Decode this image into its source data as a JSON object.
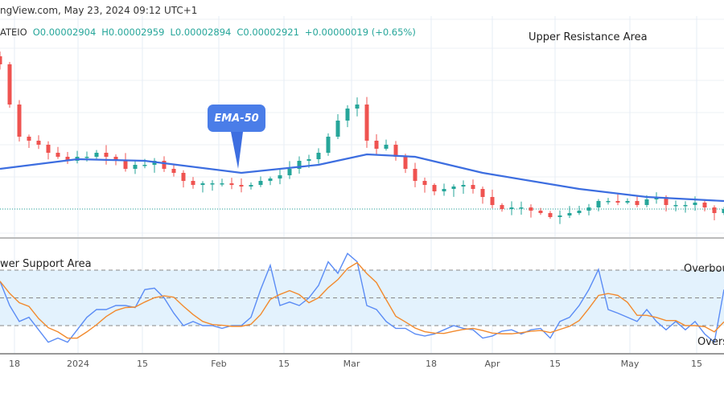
{
  "header": {
    "source": "ngView.com, May 23, 2024 09:12 UTC+1",
    "ticker": "ATEIO",
    "open": "O0.00002904",
    "high": "H0.00002959",
    "low": "L0.00002894",
    "close": "C0.00002921",
    "change": "+0.00000019 (+0.65%)"
  },
  "annotations": {
    "upper": "Upper Resistance Area",
    "lower": "wer Support Area",
    "ema": "EMA-50",
    "overbought": "Overbough",
    "oversold": "Overs"
  },
  "colors": {
    "up": "#26a69a",
    "down": "#ef5350",
    "ema": "#3d6ee0",
    "rsi": "#5b8cf5",
    "rsi_ma": "#f28a2e",
    "band": "#e3f2fd"
  },
  "chart_data": [
    {
      "type": "candlestick",
      "title": "",
      "last_close": 2.921e-05,
      "ylim": [
        2.801e-05,
        3.881e-05
      ],
      "x_ticks": [
        "18",
        "2024",
        "15",
        "Feb",
        "15",
        "Mar",
        "18",
        "Apr",
        "15",
        "May",
        "15"
      ],
      "closes": [
        3.641e-05,
        3.441e-05,
        3.281e-05,
        3.261e-05,
        3.241e-05,
        3.201e-05,
        3.181e-05,
        3.161e-05,
        3.181e-05,
        3.181e-05,
        3.201e-05,
        3.181e-05,
        3.161e-05,
        3.121e-05,
        3.141e-05,
        3.141e-05,
        3.161e-05,
        3.121e-05,
        3.101e-05,
        3.061e-05,
        3.041e-05,
        3.049e-05,
        3.049e-05,
        3.049e-05,
        3.041e-05,
        3.033e-05,
        3.041e-05,
        3.061e-05,
        3.073e-05,
        3.089e-05,
        3.121e-05,
        3.161e-05,
        3.169e-05,
        3.201e-05,
        3.281e-05,
        3.361e-05,
        3.421e-05,
        3.441e-05,
        3.261e-05,
        3.221e-05,
        3.241e-05,
        3.181e-05,
        3.121e-05,
        3.061e-05,
        3.041e-05,
        3.009e-05,
        3.021e-05,
        3.033e-05,
        3.041e-05,
        3.021e-05,
        2.981e-05,
        2.941e-05,
        2.921e-05,
        2.929e-05,
        2.929e-05,
        2.913e-05,
        2.901e-05,
        2.881e-05,
        2.889e-05,
        2.901e-05,
        2.913e-05,
        2.929e-05,
        2.961e-05,
        2.961e-05,
        2.953e-05,
        2.961e-05,
        2.941e-05,
        2.969e-05,
        2.981e-05,
        2.941e-05,
        2.941e-05,
        2.941e-05,
        2.953e-05,
        2.929e-05,
        2.901e-05,
        2.921e-05
      ],
      "ema50": [
        [
          0,
          3.121e-05
        ],
        [
          8,
          3.169e-05
        ],
        [
          15,
          3.161e-05
        ],
        [
          25,
          3.101e-05
        ],
        [
          33,
          3.141e-05
        ],
        [
          38,
          3.193e-05
        ],
        [
          43,
          3.181e-05
        ],
        [
          50,
          3.101e-05
        ],
        [
          60,
          3.021e-05
        ],
        [
          67,
          2.981e-05
        ],
        [
          75,
          2.961e-05
        ]
      ]
    },
    {
      "type": "line",
      "title": "",
      "ylim": [
        0,
        100
      ],
      "levels": [
        70,
        50,
        30
      ],
      "rsi": [
        62,
        44.5,
        33,
        36,
        27,
        18,
        21,
        18,
        27,
        36,
        41.6,
        41.6,
        44.5,
        44.5,
        43,
        56,
        57,
        50,
        39,
        30,
        33,
        30,
        30,
        28,
        30,
        30,
        36,
        56,
        73.5,
        44.5,
        47,
        44.5,
        50,
        59,
        76,
        67.7,
        82,
        76,
        44.5,
        41.6,
        33,
        28,
        28,
        24,
        22.5,
        24,
        27,
        30,
        28,
        27,
        21,
        22.5,
        26,
        27,
        24,
        27,
        28,
        21,
        33,
        36,
        44.5,
        56,
        70.5,
        41.6,
        39,
        36,
        33,
        41.6,
        33,
        27,
        33,
        27,
        33,
        24,
        18,
        56
      ]
    }
  ]
}
